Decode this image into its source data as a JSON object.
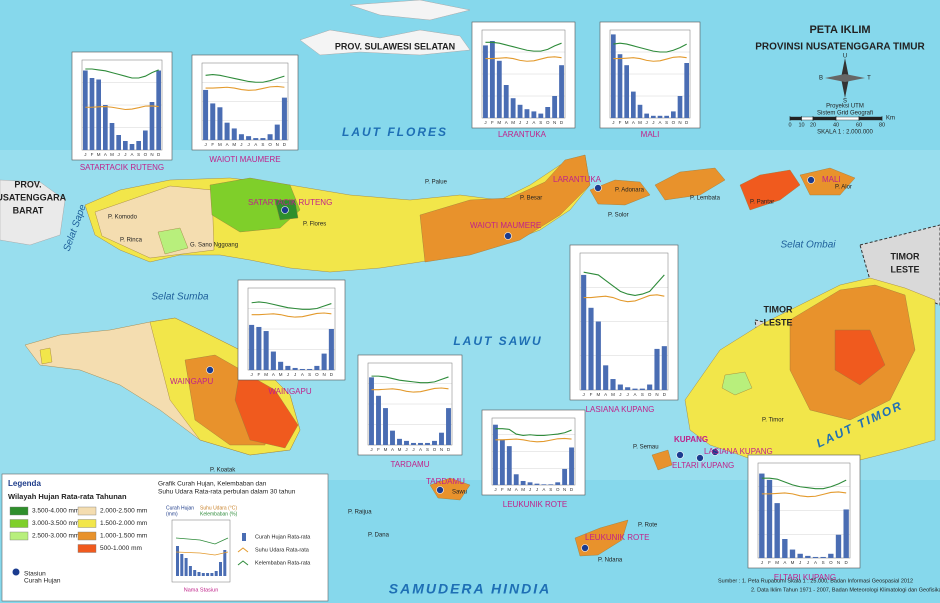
{
  "title": "PETA IKLIM",
  "subtitle": "PROVINSI NUSATENGGARA TIMUR",
  "compass": [
    "U",
    "S",
    "B",
    "T"
  ],
  "projection": "Proyeksi UTM",
  "grid_system": "Sistem Grid Geografi",
  "scale": {
    "ticks": [
      0,
      10,
      20,
      40,
      60,
      80
    ],
    "unit": "Km",
    "label": "SKALA 1 : 2.000.000"
  },
  "seas": [
    "LAUT FLORES",
    "LAUT SAWU",
    "SAMUDERA HINDIA",
    "LAUT TIMOR",
    "Selat Sumba",
    "Selat Ombai",
    "Selat Sape"
  ],
  "regions": [
    "PROV. SULAWESI SELATAN",
    "PROV.",
    "NUSATENGGARA",
    "BARAT",
    "TIMOR",
    "LESTE",
    "TIMOR",
    "LESTE"
  ],
  "islands": [
    "P. Komodo",
    "P. Rinca",
    "P. Flores",
    "P. Palue",
    "P. Besar",
    "P. Solor",
    "P. Adonara",
    "P. Lembata",
    "P. Pantar",
    "P. Alor",
    "P. Koatak",
    "P. Raijua",
    "P. Dana",
    "Sawu",
    "P. Semau",
    "P. Timor",
    "P. Rote",
    "P. Ndana",
    "G. Sano Nggoang"
  ],
  "stations": [
    "SATARTACIK RUTENG",
    "WAIOTI MAUMERE",
    "LARANTUKA",
    "MALI",
    "WAINGAPU",
    "TARDAMU",
    "KUPANG",
    "ELTARI KUPANG",
    "LASIANA KUPANG",
    "LEUKUNIK ROTE"
  ],
  "chart_axes": {
    "months": [
      "J",
      "F",
      "M",
      "A",
      "M",
      "J",
      "J",
      "A",
      "S",
      "O",
      "N",
      "D"
    ],
    "humidity_ylim": [
      0,
      100
    ],
    "temperature_ylim": [
      0,
      40
    ],
    "rain_color": "#4a6db3",
    "temperature_color": "#e39a2d",
    "humidity_color": "#2e8b3a"
  },
  "charts": [
    {
      "name": "SATARTACIK RUTENG",
      "rain_ylim": [
        0,
        600
      ],
      "rain": [
        530,
        480,
        470,
        300,
        180,
        100,
        60,
        40,
        60,
        130,
        320,
        530
      ],
      "temperature": [
        19,
        19,
        19.2,
        19.3,
        19,
        18.5,
        18,
        18.2,
        18.8,
        19.5,
        19.6,
        19.3
      ],
      "humidity": [
        90,
        90,
        89,
        88,
        86,
        84,
        82,
        80,
        80,
        82,
        86,
        89
      ]
    },
    {
      "name": "WAIOTI MAUMERE",
      "rain_ylim": [
        0,
        400
      ],
      "rain": [
        260,
        190,
        170,
        90,
        60,
        30,
        20,
        10,
        10,
        30,
        80,
        220
      ],
      "temperature": [
        27,
        27,
        27.2,
        27.4,
        27,
        26.2,
        25.8,
        26,
        26.8,
        27.6,
        27.8,
        27.4
      ],
      "humidity": [
        84,
        85,
        84,
        82,
        80,
        78,
        76,
        75,
        75,
        77,
        80,
        83
      ]
    },
    {
      "name": "LARANTUKA",
      "rain_ylim": [
        0,
        400
      ],
      "rain": [
        330,
        350,
        260,
        150,
        90,
        60,
        40,
        30,
        20,
        50,
        100,
        240
      ],
      "temperature": [
        27,
        27,
        27.2,
        27.4,
        27,
        26.2,
        25.8,
        26,
        26.8,
        27.6,
        27.8,
        27.4
      ],
      "humidity": [
        86,
        86,
        85,
        83,
        81,
        79,
        77,
        76,
        76,
        78,
        82,
        85
      ]
    },
    {
      "name": "MALI",
      "rain_ylim": [
        0,
        400
      ],
      "rain": [
        380,
        290,
        240,
        120,
        60,
        20,
        10,
        10,
        10,
        30,
        100,
        250
      ],
      "temperature": [
        27,
        27,
        27.2,
        27.4,
        27,
        26.2,
        25.8,
        26,
        26.8,
        27.6,
        27.8,
        27.4
      ],
      "humidity": [
        84,
        85,
        84,
        82,
        80,
        78,
        76,
        75,
        75,
        77,
        80,
        84
      ]
    },
    {
      "name": "WAINGAPU",
      "rain_ylim": [
        0,
        400
      ],
      "rain": [
        220,
        210,
        190,
        90,
        40,
        20,
        10,
        5,
        5,
        20,
        80,
        200
      ],
      "temperature": [
        27,
        27,
        27.2,
        27.4,
        27,
        26.2,
        25.8,
        26,
        26.8,
        27.6,
        27.8,
        27.4
      ],
      "humidity": [
        82,
        83,
        82,
        80,
        78,
        76,
        75,
        74,
        74,
        75,
        78,
        81
      ]
    },
    {
      "name": "TARDAMU",
      "rain_ylim": [
        0,
        400
      ],
      "rain": [
        330,
        240,
        180,
        70,
        30,
        20,
        10,
        10,
        10,
        20,
        60,
        180
      ],
      "temperature": [
        27,
        27,
        27.2,
        27.4,
        27,
        26.2,
        25.8,
        26,
        26.8,
        27.6,
        27.8,
        27.4
      ],
      "humidity": [
        84,
        84,
        83,
        81,
        79,
        78,
        77,
        76,
        76,
        77,
        80,
        83
      ]
    },
    {
      "name": "LASIANA KUPANG",
      "rain_ylim": [
        0,
        500
      ],
      "rain": [
        420,
        300,
        250,
        90,
        40,
        20,
        10,
        5,
        5,
        20,
        150,
        160
      ],
      "temperature": [
        27,
        27,
        27.2,
        27.4,
        27,
        26.2,
        25.8,
        26,
        26.8,
        27.6,
        27.8,
        27.4
      ],
      "humidity": [
        86,
        85,
        84,
        80,
        76,
        72,
        70,
        69,
        70,
        72,
        78,
        84
      ]
    },
    {
      "name": "LEUKUNIK ROTE",
      "rain_ylim": [
        0,
        500
      ],
      "rain": [
        450,
        340,
        290,
        80,
        30,
        20,
        10,
        5,
        5,
        20,
        120,
        280
      ],
      "temperature": [
        27,
        27,
        27.2,
        27.4,
        27,
        26.2,
        25.8,
        26,
        26.8,
        27.6,
        27.8,
        27.4
      ],
      "humidity": [
        84,
        84,
        83,
        76,
        74,
        75,
        74,
        74,
        75,
        76,
        78,
        82
      ]
    },
    {
      "name": "ELTARI KUPANG",
      "rain_ylim": [
        0,
        450
      ],
      "rain": [
        400,
        370,
        260,
        90,
        40,
        20,
        10,
        5,
        5,
        20,
        110,
        230
      ],
      "temperature": [
        27,
        27,
        27.2,
        27.4,
        27,
        26.2,
        25.8,
        26,
        26.8,
        27.6,
        27.8,
        27.4
      ],
      "humidity": [
        84,
        84,
        83,
        80,
        77,
        75,
        74,
        73,
        73,
        75,
        78,
        82
      ]
    }
  ],
  "legend": {
    "title": "Legenda",
    "rain_heading": "Wilayah Hujan Rata-rata Tahunan",
    "classes": [
      {
        "label": "3.500-4.000 mm",
        "color": "#2f8f2c"
      },
      {
        "label": "3.000-3.500 mm",
        "color": "#7fcf2a"
      },
      {
        "label": "2.500-3.000 mm",
        "color": "#b8ef7c"
      },
      {
        "label": "2.000-2.500 mm",
        "color": "#f4ddb0"
      },
      {
        "label": "1.500-2.000 mm",
        "color": "#f2e64a"
      },
      {
        "label": "1.000-1.500 mm",
        "color": "#e8922c"
      },
      {
        "label": "500-1.000 mm",
        "color": "#f05a1e"
      }
    ],
    "station_lines": [
      "Stasiun",
      "Curah Hujan"
    ],
    "graph_heading": [
      "Grafik Curah Hujan, Kelembaban dan",
      "Suhu Udara Rata-rata  perbulan dalam 30 tahun"
    ],
    "axis_rain": [
      "Curah Hujan",
      "(mm)"
    ],
    "axis_temp": "Suhu Udara (°C)",
    "axis_hum": "Kelembaban (%)",
    "items": [
      "Curah Hujan Rata-rata",
      "Suhu Udara Rata-rata",
      "Kelembaban Rata-rata"
    ],
    "sample_name": "Nama Stasiun"
  },
  "source": [
    "Sumber :  1. Peta Rupabumi Skala 1 : 25.000, Badan Informasi Geospasial 2012",
    "2. Data Iklim Tahun 1971 - 2007, Badan Meteorologi Klimatologi dan Geofisika"
  ]
}
